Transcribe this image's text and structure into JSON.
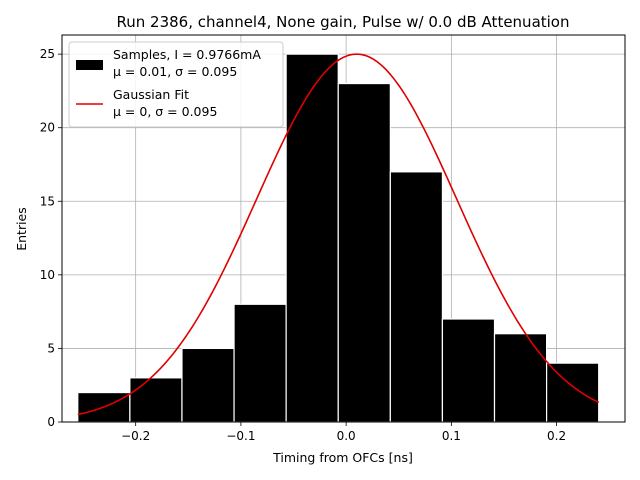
{
  "chart_data": {
    "type": "bar",
    "title": "Run 2386, channel4, None gain, Pulse w/ 0.0 dB Attenuation",
    "xlabel": "Timing from OFCs [ns]",
    "ylabel": "Entries",
    "xlim": [
      -0.27,
      0.265
    ],
    "ylim": [
      0,
      26.3
    ],
    "grid": true,
    "legend_position": "upper-left",
    "xticks": [
      -0.2,
      -0.1,
      0.0,
      0.1,
      0.2
    ],
    "xtick_labels": [
      "−0.2",
      "−0.1",
      "0.0",
      "0.1",
      "0.2"
    ],
    "yticks": [
      0,
      5,
      10,
      15,
      20,
      25
    ],
    "ytick_labels": [
      "0",
      "5",
      "10",
      "15",
      "20",
      "25"
    ],
    "histogram": {
      "bin_edges": [
        -0.255,
        -0.2055,
        -0.156,
        -0.1065,
        -0.057,
        -0.0075,
        0.042,
        0.0915,
        0.141,
        0.1905,
        0.24
      ],
      "counts": [
        2,
        3,
        5,
        8,
        25,
        23,
        17,
        7,
        6,
        4
      ],
      "color": "#000000",
      "edgecolor": "#ffffff"
    },
    "fit": {
      "type": "gaussian",
      "mu": 0.01,
      "sigma": 0.095,
      "amplitude": 25,
      "x_range": [
        -0.255,
        0.24
      ],
      "color": "#e00000"
    },
    "legend": [
      {
        "line1": "Samples, I = 0.9766mA",
        "line2": "μ = 0.01, σ = 0.095",
        "kind": "patch",
        "color": "#000000"
      },
      {
        "line1": "Gaussian Fit",
        "line2": "μ = 0, σ = 0.095",
        "kind": "line",
        "color": "#e00000"
      }
    ]
  }
}
